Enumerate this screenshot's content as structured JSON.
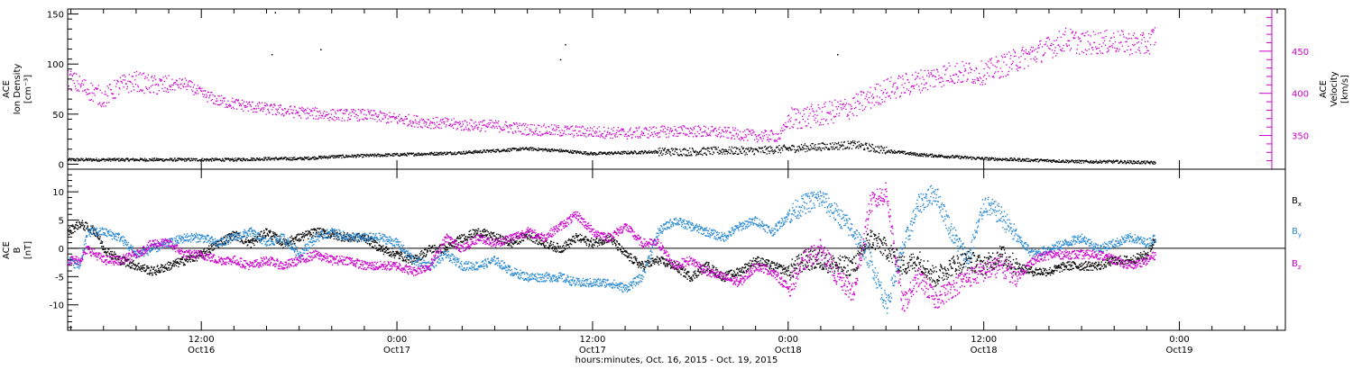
{
  "chart_data": [
    {
      "type": "scatter",
      "panel": "top",
      "xlabel": "hours:minutes, Oct. 16, 2015 - Oct. 19, 2015",
      "x_ticks": [
        {
          "x": 12,
          "label": "12:00",
          "date": "Oct16"
        },
        {
          "x": 24,
          "label": "0:00",
          "date": "Oct17"
        },
        {
          "x": 36,
          "label": "12:00",
          "date": "Oct17"
        },
        {
          "x": 48,
          "label": "0:00",
          "date": "Oct18"
        },
        {
          "x": 60,
          "label": "12:00",
          "date": "Oct18"
        },
        {
          "x": 72,
          "label": "0:00",
          "date": "Oct19"
        }
      ],
      "xlim": [
        3.8,
        78.5
      ],
      "left_axis": {
        "label_lines": [
          "ACE",
          "Ion Density",
          "[cm⁻³]"
        ],
        "ylim": [
          -5,
          155
        ],
        "ticks": [
          0,
          50,
          100,
          150
        ],
        "color": "#000000"
      },
      "right_axis": {
        "label_lines": [
          "ACE",
          "Velocity",
          "[km/s]"
        ],
        "ylim": [
          310,
          500
        ],
        "ticks": [
          350,
          400,
          450
        ],
        "color": "#cc00cc"
      },
      "series": [
        {
          "axis": "left",
          "color": "#000000",
          "x": [
            3.8,
            6,
            8,
            10,
            12,
            14,
            16,
            18,
            20,
            22,
            24,
            26,
            28,
            30,
            32,
            34,
            36,
            38,
            40,
            42,
            44,
            46,
            48,
            50,
            52,
            54,
            56,
            58,
            60,
            62,
            64,
            66,
            68,
            70.5
          ],
          "y": [
            5,
            5,
            5,
            5,
            5,
            5,
            6,
            6,
            8,
            9,
            10,
            11,
            12,
            14,
            16,
            14,
            11,
            12,
            13,
            13,
            14,
            14,
            16,
            18,
            20,
            14,
            10,
            8,
            6,
            5,
            4,
            3,
            3,
            2
          ]
        },
        {
          "axis": "right",
          "color": "#cc00cc",
          "x": [
            3.8,
            5,
            6,
            7,
            8,
            9,
            10,
            11,
            12,
            13,
            14,
            16,
            18,
            20,
            22,
            24,
            26,
            28,
            30,
            32,
            34,
            36,
            38,
            40,
            42,
            44,
            46,
            47.5,
            48,
            50,
            52,
            54,
            56,
            58,
            60,
            62,
            64,
            65,
            66,
            68,
            70,
            70.5
          ],
          "y": [
            418,
            405,
            395,
            410,
            415,
            410,
            410,
            412,
            400,
            392,
            388,
            382,
            378,
            375,
            375,
            370,
            366,
            363,
            362,
            358,
            356,
            355,
            353,
            355,
            356,
            354,
            350,
            350,
            370,
            375,
            385,
            405,
            415,
            425,
            425,
            440,
            455,
            465,
            460,
            462,
            458,
            470
          ]
        }
      ],
      "isolated_points": [
        {
          "x": 16.5,
          "y": 152,
          "axis": "left"
        },
        {
          "x": 16.3,
          "y": 110,
          "axis": "left"
        },
        {
          "x": 19.3,
          "y": 115,
          "axis": "left"
        },
        {
          "x": 34.3,
          "y": 120,
          "axis": "left"
        },
        {
          "x": 34.0,
          "y": 105,
          "axis": "left"
        },
        {
          "x": 51.0,
          "y": 110,
          "axis": "left"
        }
      ]
    },
    {
      "type": "line",
      "panel": "bottom",
      "y_axis": {
        "label_lines": [
          "ACE",
          "B",
          "[nT]"
        ],
        "ylim": [
          -14.5,
          14
        ],
        "ticks": [
          -10,
          -5,
          0,
          5,
          10
        ]
      },
      "zero_line": true,
      "xlim": [
        3.8,
        78.5
      ],
      "series": [
        {
          "name": "Bx",
          "color": "#000000",
          "x": [
            3.8,
            4.5,
            5.5,
            6,
            7,
            8,
            9,
            10,
            11,
            12,
            13,
            14,
            15,
            16,
            17,
            18,
            19,
            20,
            21,
            22,
            23,
            24,
            25,
            26,
            27,
            28,
            29,
            30,
            31,
            32,
            33,
            34,
            35,
            36,
            37,
            38,
            39,
            40,
            41,
            42,
            43,
            44,
            45,
            46,
            47,
            48,
            49,
            50,
            51,
            52,
            53,
            54,
            55,
            56,
            57,
            58,
            59,
            60,
            61,
            62,
            63,
            64,
            65,
            66,
            67,
            68,
            69,
            70,
            70.5
          ],
          "y": [
            3,
            4.5,
            3,
            0,
            -2,
            -3,
            -4,
            -3,
            -2,
            -1,
            1,
            2.5,
            1,
            3,
            1,
            2,
            3,
            2.5,
            2,
            2,
            0,
            -1,
            -2,
            0,
            0,
            2,
            3,
            2,
            1,
            2.5,
            1,
            0,
            2,
            1,
            2,
            -1,
            -3,
            -2,
            -3,
            -5,
            -3,
            -5,
            -4,
            -2,
            -3,
            -4,
            -2,
            -2,
            -3,
            -3,
            2,
            0,
            -3,
            -2,
            -5,
            -3,
            -2,
            -3,
            -1,
            -3,
            -4,
            -4,
            -3,
            -3,
            -3,
            -2,
            -2,
            -1,
            2
          ]
        },
        {
          "name": "By",
          "color": "#2a8ad4",
          "x": [
            3.8,
            4.5,
            5,
            6,
            7,
            8,
            9,
            10,
            11,
            12,
            13,
            14,
            15,
            16,
            17,
            18,
            19,
            20,
            21,
            22,
            23,
            24,
            25,
            26,
            27,
            28,
            29,
            30,
            31,
            32,
            33,
            34,
            35,
            36,
            37,
            38,
            39,
            40,
            41,
            42,
            43,
            44,
            45,
            46,
            47,
            48,
            49,
            50,
            51,
            52,
            53,
            54,
            55,
            56,
            57,
            58,
            59,
            60,
            61,
            62,
            63,
            64,
            65,
            66,
            67,
            68,
            69,
            70,
            70.5
          ],
          "y": [
            -2,
            -3,
            3,
            3,
            2,
            -1,
            0,
            1,
            2,
            2,
            1,
            2,
            3,
            1,
            2,
            -1,
            2,
            3,
            2,
            2,
            2,
            1,
            -2,
            -3,
            -1,
            -3,
            -3,
            -2,
            -4,
            -5,
            -5,
            -5,
            -6,
            -6,
            -6,
            -7,
            -5,
            3,
            5,
            4,
            3,
            2,
            4,
            5,
            3,
            6,
            8,
            9,
            6,
            3,
            -2,
            -10,
            0,
            8,
            10,
            3,
            -2,
            8,
            6,
            2,
            -1,
            0,
            1,
            2,
            0,
            1,
            2,
            1,
            2
          ]
        },
        {
          "name": "Bz",
          "color": "#cc00cc",
          "x": [
            3.8,
            4.5,
            5,
            6,
            7,
            8,
            9,
            10,
            11,
            12,
            13,
            14,
            15,
            16,
            17,
            18,
            19,
            20,
            21,
            22,
            23,
            24,
            25,
            26,
            27,
            28,
            29,
            30,
            31,
            32,
            33,
            34,
            35,
            36,
            37,
            38,
            39,
            40,
            41,
            42,
            43,
            44,
            45,
            46,
            47,
            48,
            49,
            50,
            51,
            52,
            53,
            54,
            55,
            56,
            57,
            58,
            59,
            60,
            61,
            62,
            63,
            64,
            65,
            66,
            67,
            68,
            69,
            70,
            70.5
          ],
          "y": [
            -2,
            -2,
            0,
            -2,
            -2,
            -1,
            1,
            1,
            -1,
            -1,
            -2,
            -2,
            -3,
            -2,
            -3,
            -2,
            -1,
            -2,
            -2,
            -3,
            -3,
            -3,
            -4,
            -3,
            2,
            0,
            2,
            1,
            2,
            3,
            2,
            4,
            6,
            3,
            2,
            4,
            1,
            1,
            -3,
            -2,
            -4,
            -5,
            -6,
            -3,
            -4,
            -7,
            -2,
            0,
            -5,
            -8,
            8,
            10,
            -10,
            -5,
            -9,
            -7,
            -5,
            -4,
            -3,
            -5,
            -2,
            -1,
            -1,
            -1,
            -1,
            -2,
            -3,
            -2,
            -1
          ]
        }
      ],
      "legend": [
        {
          "label": "B",
          "sub": "x",
          "color": "#000000"
        },
        {
          "label": "B",
          "sub": "y",
          "color": "#2a8ad4"
        },
        {
          "label": "B",
          "sub": "z",
          "color": "#cc00cc"
        }
      ],
      "legend_position": "right"
    }
  ]
}
